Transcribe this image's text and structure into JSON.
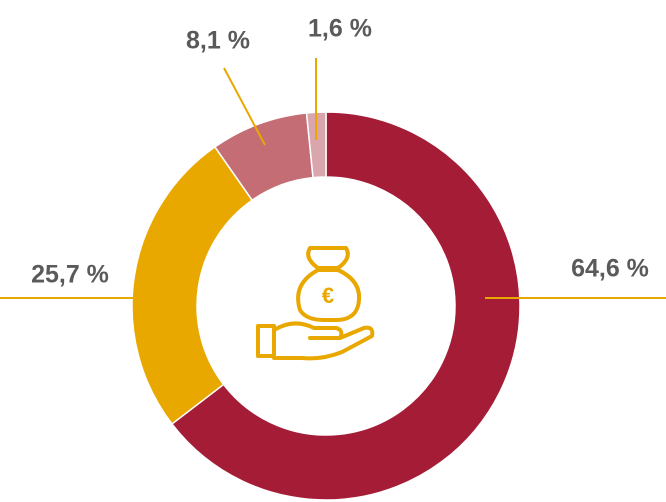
{
  "chart_data": {
    "type": "donut",
    "categories": [
      null,
      null,
      null,
      null
    ],
    "values": [
      64.6,
      25.7,
      8.1,
      1.6
    ],
    "value_labels": [
      "64,6 %",
      "25,7 %",
      "8,1 %",
      "1,6 %"
    ],
    "colors": [
      "#a51c36",
      "#e9a800",
      "#c46d74",
      "#d9a6ae"
    ],
    "center_label": "€"
  }
}
